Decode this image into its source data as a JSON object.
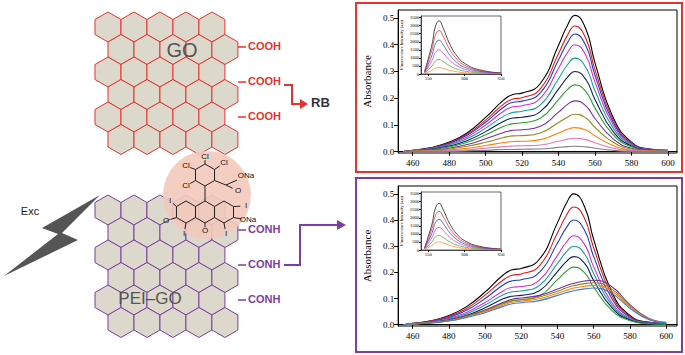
{
  "diagram": {
    "sheets": [
      {
        "label": "GO",
        "groups": [
          "COOH",
          "COOH",
          "COOH"
        ],
        "color": "#e8322d"
      },
      {
        "label": "PEI–GO",
        "groups": [
          "CONH",
          "CONH",
          "CONH"
        ],
        "color": "#7b3fa0"
      }
    ],
    "dye": {
      "label": "RB",
      "atoms": [
        "Cl",
        "Cl",
        "Cl",
        "Cl",
        "ONa",
        "O",
        "I",
        "O",
        "I",
        "O",
        "I",
        "ONa",
        "I"
      ]
    },
    "excitation": "Exc"
  },
  "chart_data": [
    {
      "type": "line",
      "y_label": "Absorbance",
      "x": [
        455,
        460,
        470,
        480,
        490,
        500,
        510,
        515,
        520,
        530,
        540,
        545,
        549,
        555,
        560,
        570,
        580,
        590,
        600
      ],
      "xlim": [
        452,
        605
      ],
      "xticks": [
        460,
        480,
        500,
        520,
        540,
        560,
        580,
        600
      ],
      "ylim": [
        -0.005,
        0.53
      ],
      "yticks": [
        {
          "value": 0,
          "label": "0.0"
        },
        0.1,
        0.2,
        0.3,
        0.4,
        0.5
      ],
      "grid": false,
      "series": [
        {
          "color": "#000000",
          "values": [
            0,
            0.005,
            0.015,
            0.036,
            0.071,
            0.128,
            0.194,
            0.214,
            0.219,
            0.255,
            0.398,
            0.474,
            0.51,
            0.459,
            0.332,
            0.128,
            0.036,
            0.01,
            0.005
          ]
        },
        {
          "color": "#e41a1c",
          "values": [
            0,
            0.005,
            0.014,
            0.033,
            0.066,
            0.118,
            0.179,
            0.197,
            0.202,
            0.235,
            0.367,
            0.437,
            0.47,
            0.423,
            0.306,
            0.118,
            0.033,
            0.009,
            0.005
          ]
        },
        {
          "color": "#1f3fbf",
          "values": [
            0,
            0.004,
            0.013,
            0.031,
            0.062,
            0.11,
            0.167,
            0.185,
            0.189,
            0.22,
            0.343,
            0.409,
            0.44,
            0.396,
            0.286,
            0.11,
            0.031,
            0.009,
            0.004
          ]
        },
        {
          "color": "#d12fd1",
          "values": [
            0,
            0.004,
            0.012,
            0.028,
            0.056,
            0.1,
            0.152,
            0.168,
            0.172,
            0.2,
            0.312,
            0.372,
            0.4,
            0.36,
            0.26,
            0.1,
            0.028,
            0.008,
            0.004
          ]
        },
        {
          "color": "#1a9e9e",
          "values": [
            0,
            0.004,
            0.011,
            0.025,
            0.049,
            0.088,
            0.133,
            0.147,
            0.151,
            0.175,
            0.273,
            0.326,
            0.35,
            0.315,
            0.228,
            0.088,
            0.025,
            0.007,
            0.004
          ]
        },
        {
          "color": "#0b1f5c",
          "values": [
            0,
            0.003,
            0.009,
            0.021,
            0.042,
            0.075,
            0.114,
            0.126,
            0.129,
            0.15,
            0.234,
            0.279,
            0.3,
            0.27,
            0.195,
            0.075,
            0.021,
            0.006,
            0.003
          ]
        },
        {
          "color": "#2ca02c",
          "values": [
            0,
            0.003,
            0.008,
            0.018,
            0.035,
            0.063,
            0.095,
            0.105,
            0.108,
            0.125,
            0.195,
            0.233,
            0.25,
            0.225,
            0.163,
            0.063,
            0.018,
            0.005,
            0.003
          ]
        },
        {
          "color": "#7b2fa0",
          "values": [
            0,
            0.002,
            0.006,
            0.013,
            0.027,
            0.048,
            0.072,
            0.08,
            0.082,
            0.095,
            0.148,
            0.177,
            0.19,
            0.171,
            0.124,
            0.048,
            0.013,
            0.004,
            0.002
          ]
        },
        {
          "color": "#8c8c1a",
          "values": [
            0,
            0.001,
            0.004,
            0.01,
            0.02,
            0.035,
            0.053,
            0.059,
            0.06,
            0.07,
            0.109,
            0.13,
            0.14,
            0.126,
            0.091,
            0.035,
            0.01,
            0.003,
            0.001
          ]
        },
        {
          "color": "#ff7f0e",
          "values": [
            0,
            0.001,
            0.003,
            0.006,
            0.013,
            0.023,
            0.034,
            0.038,
            0.039,
            0.045,
            0.07,
            0.084,
            0.09,
            0.081,
            0.059,
            0.023,
            0.006,
            0.002,
            0.001
          ]
        },
        {
          "color": "#e377c2",
          "values": [
            0,
            0.001,
            0.002,
            0.004,
            0.007,
            0.013,
            0.019,
            0.021,
            0.022,
            0.025,
            0.039,
            0.047,
            0.05,
            0.045,
            0.033,
            0.013,
            0.004,
            0.001,
            0.001
          ]
        },
        {
          "color": "#7f7f7f",
          "values": [
            0,
            0,
            0.001,
            0.001,
            0.003,
            0.005,
            0.008,
            0.008,
            0.009,
            0.01,
            0.016,
            0.019,
            0.02,
            0.018,
            0.013,
            0.005,
            0.001,
            0,
            0
          ]
        }
      ]
    },
    {
      "type": "line",
      "y_label": "Fluorescence Intensity (a.u)",
      "x": [
        545,
        555,
        560,
        565,
        570,
        580,
        590,
        600,
        620,
        650
      ],
      "xlim": [
        540,
        650
      ],
      "xticks": [
        550,
        600,
        650
      ],
      "ylim": [
        0,
        3600
      ],
      "yticks": [
        0,
        500,
        1000,
        1500,
        2000,
        2500,
        3000,
        3500
      ],
      "grid": false,
      "series": [
        {
          "color": "#000000",
          "values": [
            165,
            1815,
            2970,
            3300,
            2904,
            1815,
            1089,
            660,
            264,
            66
          ]
        },
        {
          "color": "#e41a1c",
          "values": [
            135,
            1485,
            2430,
            2700,
            2376,
            1485,
            891,
            540,
            216,
            54
          ]
        },
        {
          "color": "#1f3fbf",
          "values": [
            105,
            1155,
            1890,
            2100,
            1848,
            1155,
            693,
            420,
            168,
            42
          ]
        },
        {
          "color": "#d12fd1",
          "values": [
            75,
            825,
            1350,
            1500,
            1320,
            825,
            495,
            300,
            120,
            30
          ]
        },
        {
          "color": "#2ca02c",
          "values": [
            45,
            495,
            810,
            900,
            792,
            495,
            297,
            180,
            72,
            18
          ]
        },
        {
          "color": "#ff7f0e",
          "values": [
            20,
            220,
            360,
            400,
            352,
            220,
            132,
            80,
            32,
            8
          ]
        }
      ]
    },
    {
      "type": "line",
      "y_label": "Absorbance",
      "x": [
        455,
        460,
        470,
        480,
        490,
        500,
        510,
        515,
        520,
        530,
        540,
        545,
        549,
        555,
        560,
        570,
        580,
        590,
        600
      ],
      "xlim": [
        452,
        606
      ],
      "xticks": [
        460,
        480,
        500,
        520,
        540,
        560,
        580,
        600
      ],
      "ylim": [
        -0.005,
        0.53
      ],
      "yticks": [
        {
          "value": 0,
          "label": "0.0"
        },
        0.1,
        0.2,
        0.3,
        0.4,
        0.5
      ],
      "grid": false,
      "series": [
        {
          "color": "#000000",
          "values": [
            0,
            0.005,
            0.015,
            0.035,
            0.07,
            0.125,
            0.19,
            0.21,
            0.215,
            0.25,
            0.39,
            0.465,
            0.5,
            0.45,
            0.325,
            0.125,
            0.035,
            0.01,
            0.005
          ]
        },
        {
          "color": "#e41a1c",
          "values": [
            0,
            0.005,
            0.014,
            0.032,
            0.063,
            0.113,
            0.171,
            0.189,
            0.194,
            0.225,
            0.351,
            0.419,
            0.45,
            0.405,
            0.293,
            0.113,
            0.032,
            0.009,
            0.005
          ]
        },
        {
          "color": "#1f3fbf",
          "values": [
            0,
            0.004,
            0.012,
            0.028,
            0.056,
            0.1,
            0.152,
            0.168,
            0.172,
            0.2,
            0.312,
            0.372,
            0.4,
            0.36,
            0.26,
            0.1,
            0.028,
            0.008,
            0.004
          ]
        },
        {
          "color": "#d12fd1",
          "values": [
            0,
            0.003,
            0.01,
            0.024,
            0.048,
            0.085,
            0.129,
            0.143,
            0.146,
            0.17,
            0.265,
            0.316,
            0.34,
            0.306,
            0.221,
            0.085,
            0.024,
            0.007,
            0.003
          ]
        },
        {
          "color": "#1a9e9e",
          "values": [
            0,
            0.003,
            0.009,
            0.021,
            0.042,
            0.075,
            0.114,
            0.126,
            0.129,
            0.15,
            0.234,
            0.279,
            0.3,
            0.27,
            0.195,
            0.075,
            0.021,
            0.006,
            0.003
          ]
        },
        {
          "color": "#0b1f5c",
          "values": [
            0,
            0.003,
            0.008,
            0.018,
            0.036,
            0.065,
            0.099,
            0.109,
            0.112,
            0.13,
            0.203,
            0.242,
            0.26,
            0.234,
            0.169,
            0.065,
            0.018,
            0.005,
            0.003
          ]
        },
        {
          "color": "#2ca02c",
          "values": [
            0,
            0.002,
            0.007,
            0.015,
            0.031,
            0.055,
            0.084,
            0.092,
            0.095,
            0.11,
            0.172,
            0.205,
            0.22,
            0.198,
            0.143,
            0.055,
            0.015,
            0.004,
            0.002
          ]
        },
        {
          "color": "#7b2fa0",
          "values": [
            0,
            0.003,
            0.009,
            0.017,
            0.034,
            0.056,
            0.085,
            0.097,
            0.102,
            0.112,
            0.136,
            0.15,
            0.158,
            0.167,
            0.17,
            0.145,
            0.077,
            0.026,
            0.009
          ]
        },
        {
          "color": "#8c8c1a",
          "values": [
            0,
            0.003,
            0.008,
            0.016,
            0.032,
            0.053,
            0.08,
            0.091,
            0.096,
            0.106,
            0.128,
            0.141,
            0.149,
            0.157,
            0.16,
            0.136,
            0.072,
            0.024,
            0.008
          ]
        },
        {
          "color": "#ff7f0e",
          "values": [
            0,
            0.003,
            0.008,
            0.015,
            0.03,
            0.05,
            0.075,
            0.086,
            0.09,
            0.099,
            0.12,
            0.132,
            0.14,
            0.147,
            0.15,
            0.128,
            0.068,
            0.023,
            0.008
          ]
        },
        {
          "color": "#3a7fd0",
          "values": [
            0,
            0.003,
            0.007,
            0.014,
            0.028,
            0.046,
            0.07,
            0.08,
            0.084,
            0.092,
            0.112,
            0.123,
            0.13,
            0.137,
            0.14,
            0.119,
            0.063,
            0.021,
            0.007
          ]
        }
      ]
    },
    {
      "type": "line",
      "y_label": "Fluorescence Intensity (a.u)",
      "x": [
        545,
        555,
        560,
        565,
        570,
        580,
        590,
        600,
        620,
        650
      ],
      "xlim": [
        540,
        650
      ],
      "xticks": [
        550,
        600,
        650
      ],
      "ylim": [
        0,
        3600
      ],
      "yticks": [
        0,
        500,
        1000,
        1500,
        2000,
        2500,
        3000,
        3500
      ],
      "grid": false,
      "series": [
        {
          "color": "#000000",
          "values": [
            145,
            1595,
            2610,
            2900,
            2552,
            1595,
            957,
            580,
            232,
            58
          ]
        },
        {
          "color": "#e41a1c",
          "values": [
            120,
            1320,
            2160,
            2400,
            2112,
            1320,
            792,
            480,
            192,
            48
          ]
        },
        {
          "color": "#1f3fbf",
          "values": [
            95,
            1045,
            1710,
            1900,
            1672,
            1045,
            627,
            380,
            152,
            38
          ]
        },
        {
          "color": "#d12fd1",
          "values": [
            70,
            770,
            1260,
            1400,
            1232,
            770,
            462,
            280,
            112,
            28
          ]
        },
        {
          "color": "#2ca02c",
          "values": [
            45,
            495,
            810,
            900,
            792,
            495,
            297,
            180,
            72,
            18
          ]
        },
        {
          "color": "#ff7f0e",
          "values": [
            25,
            275,
            450,
            500,
            440,
            275,
            165,
            100,
            40,
            10
          ]
        }
      ]
    }
  ]
}
